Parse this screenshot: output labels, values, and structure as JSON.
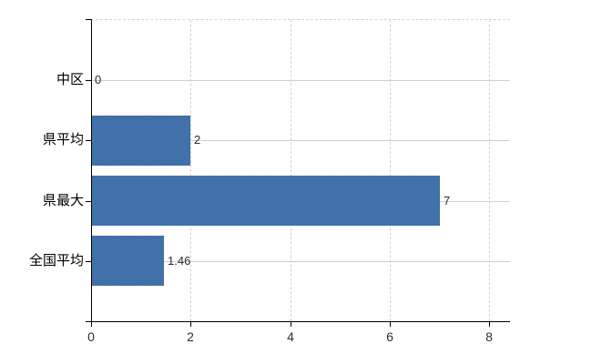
{
  "chart": {
    "background_color": "#ffffff",
    "bar_color": "#4170a9",
    "bar_dither_light": "#4c79b3",
    "bar_dither_dark": "#38679f",
    "axis_color": "#000000",
    "h_gridline_color": "#ccd3cc",
    "v_gridline_color": "#d6d2d6",
    "value_text_color": "#2b2b2b",
    "tick_text_color": "#2e2e2e",
    "category_text_color": "#000000"
  },
  "chart_data": {
    "type": "bar",
    "orientation": "horizontal",
    "title": "",
    "xlabel": "",
    "ylabel": "",
    "categories": [
      "中区",
      "県平均",
      "県最大",
      "全国平均"
    ],
    "values": [
      0,
      2,
      7,
      1.46
    ],
    "data_labels": [
      "0",
      "2",
      "7",
      "1.46"
    ],
    "x_tick_labels": [
      "0",
      "2",
      "4",
      "6",
      "8"
    ],
    "x_tick_values": [
      0,
      2,
      4,
      6,
      8
    ],
    "xlim": [
      0,
      8.42
    ],
    "grid": "on",
    "legend": "none",
    "data_labels_position": "outside-end"
  }
}
